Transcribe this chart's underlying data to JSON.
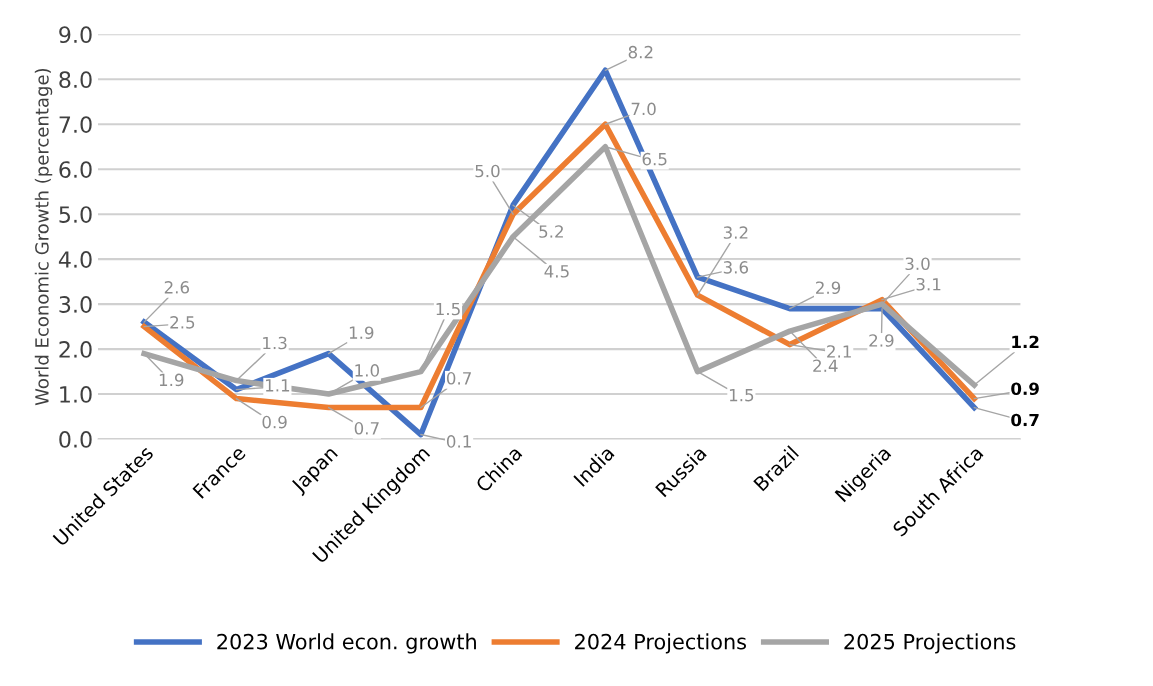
{
  "chart_data": {
    "type": "line",
    "ylabel": "World Economic Growth (percentage)",
    "categories": [
      "United States",
      "France",
      "Japan",
      "United Kingdom",
      "China",
      "India",
      "Russia",
      "Brazil",
      "Nigeria",
      "South Africa"
    ],
    "series": [
      {
        "name": "2023 World econ. growth",
        "color": "#4472c4",
        "values": [
          2.6,
          1.1,
          1.9,
          0.1,
          5.2,
          8.2,
          3.6,
          2.9,
          2.9,
          0.7
        ],
        "value_labels": [
          "2.6",
          "1.1",
          "1.9",
          "0.1",
          "5.2",
          "8.2",
          "3.6",
          "2.9",
          "2.9",
          "0.7"
        ]
      },
      {
        "name": "2024 Projections",
        "color": "#ed7d31",
        "values": [
          2.5,
          0.9,
          0.7,
          0.7,
          5.0,
          7.0,
          3.2,
          2.1,
          3.1,
          0.9
        ],
        "value_labels": [
          "2.5",
          "0.9",
          "0.7",
          "0.7",
          "5.0",
          "7.0",
          "3.2",
          "2.1",
          "3.1",
          "0.9"
        ]
      },
      {
        "name": "2025 Projections",
        "color": "#a5a5a5",
        "values": [
          1.9,
          1.3,
          1.0,
          1.5,
          4.5,
          6.5,
          1.5,
          2.4,
          3.0,
          1.2
        ],
        "value_labels": [
          "1.9",
          "1.3",
          "1.0",
          "1.5",
          "4.5",
          "6.5",
          "1.5",
          "2.4",
          "3.0",
          "1.2"
        ]
      }
    ],
    "ylim": [
      0,
      9
    ],
    "yticks": [
      {
        "value": 0,
        "label": "0.0"
      },
      {
        "value": 1,
        "label": "1.0"
      },
      {
        "value": 2,
        "label": "2.0"
      },
      {
        "value": 3,
        "label": "3.0"
      },
      {
        "value": 4,
        "label": "4.0"
      },
      {
        "value": 5,
        "label": "5.0"
      },
      {
        "value": 6,
        "label": "6.0"
      },
      {
        "value": 7,
        "label": "7.0"
      },
      {
        "value": 8,
        "label": "8.0"
      },
      {
        "value": 9,
        "label": "9.0"
      }
    ],
    "grid": "y",
    "legend": "bottom",
    "marker": "none",
    "line_style": "solid"
  }
}
